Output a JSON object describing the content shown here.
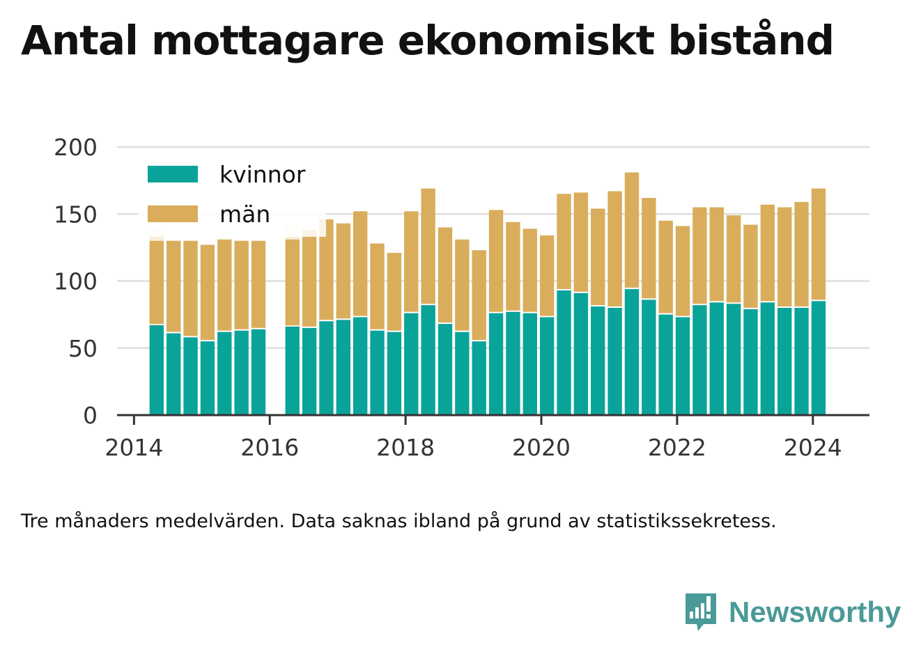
{
  "title": "Antal mottagare ekonomiskt bistånd",
  "note": "Tre månaders medelvärden. Data saknas ibland på grund av statistikssekretess.",
  "brand": {
    "name": "Newsworthy",
    "icon": "bar-chart-speech-bubble-icon",
    "color": "#4a9a98"
  },
  "colors": {
    "kvinnor": "#0aa39a",
    "man": "#d9ad5b",
    "grid": "#dddddd",
    "axis": "#333333"
  },
  "chart_data": {
    "type": "bar",
    "stacked": true,
    "legend_position": "top-left",
    "grid": true,
    "ylim": [
      0,
      200
    ],
    "yticks": [
      0,
      50,
      100,
      150,
      200
    ],
    "xticks": [
      "2014",
      "2016",
      "2018",
      "2020",
      "2022",
      "2024"
    ],
    "xlim": [
      "2013-10",
      "2024-11"
    ],
    "categories": [
      "2014-05",
      "2014-08",
      "2014-11",
      "2015-02",
      "2015-05",
      "2015-08",
      "2015-11",
      "2016-05",
      "2016-08",
      "2016-11",
      "2017-02",
      "2017-05",
      "2017-08",
      "2017-11",
      "2018-02",
      "2018-05",
      "2018-08",
      "2018-11",
      "2019-02",
      "2019-05",
      "2019-08",
      "2019-11",
      "2020-02",
      "2020-05",
      "2020-08",
      "2020-11",
      "2021-02",
      "2021-05",
      "2021-08",
      "2021-11",
      "2022-02",
      "2022-05",
      "2022-08",
      "2022-11",
      "2023-02",
      "2023-05",
      "2023-08",
      "2023-11",
      "2024-02"
    ],
    "series": [
      {
        "name": "kvinnor",
        "values": [
          67,
          61,
          58,
          55,
          62,
          63,
          64,
          66,
          65,
          70,
          71,
          73,
          63,
          62,
          76,
          82,
          68,
          62,
          55,
          76,
          77,
          76,
          73,
          93,
          91,
          81,
          80,
          94,
          86,
          75,
          73,
          82,
          84,
          83,
          79,
          84,
          80,
          80,
          85
        ]
      },
      {
        "name": "män",
        "values": [
          63,
          69,
          72,
          72,
          69,
          67,
          66,
          65,
          73,
          76,
          72,
          79,
          65,
          59,
          76,
          87,
          72,
          69,
          68,
          77,
          67,
          63,
          61,
          72,
          75,
          73,
          87,
          87,
          76,
          70,
          68,
          73,
          71,
          66,
          63,
          73,
          75,
          79,
          84
        ]
      }
    ],
    "faded_bars": [
      {
        "date": "2014-05",
        "total": 140
      },
      {
        "date": "2016-05",
        "total": 142
      }
    ]
  }
}
